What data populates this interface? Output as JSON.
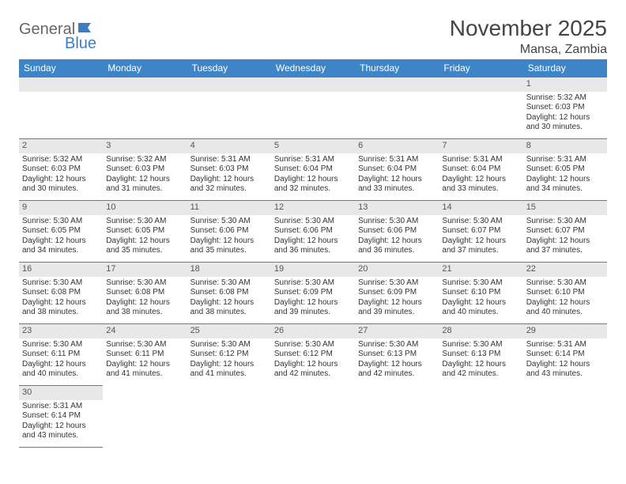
{
  "logo": {
    "part1": "General",
    "part2": "Blue"
  },
  "title": "November 2025",
  "subtitle": "Mansa, Zambia",
  "colors": {
    "header_bg": "#3d85c6",
    "header_text": "#ffffff",
    "border": "#3d85c6",
    "daynum_bg": "#e8e8e8",
    "logo_gray": "#666666",
    "logo_blue": "#3b7fbf"
  },
  "weekdays": [
    "Sunday",
    "Monday",
    "Tuesday",
    "Wednesday",
    "Thursday",
    "Friday",
    "Saturday"
  ],
  "weeks": [
    [
      null,
      null,
      null,
      null,
      null,
      null,
      {
        "n": "1",
        "sr": "Sunrise: 5:32 AM",
        "ss": "Sunset: 6:03 PM",
        "d1": "Daylight: 12 hours",
        "d2": "and 30 minutes."
      }
    ],
    [
      {
        "n": "2",
        "sr": "Sunrise: 5:32 AM",
        "ss": "Sunset: 6:03 PM",
        "d1": "Daylight: 12 hours",
        "d2": "and 30 minutes."
      },
      {
        "n": "3",
        "sr": "Sunrise: 5:32 AM",
        "ss": "Sunset: 6:03 PM",
        "d1": "Daylight: 12 hours",
        "d2": "and 31 minutes."
      },
      {
        "n": "4",
        "sr": "Sunrise: 5:31 AM",
        "ss": "Sunset: 6:03 PM",
        "d1": "Daylight: 12 hours",
        "d2": "and 32 minutes."
      },
      {
        "n": "5",
        "sr": "Sunrise: 5:31 AM",
        "ss": "Sunset: 6:04 PM",
        "d1": "Daylight: 12 hours",
        "d2": "and 32 minutes."
      },
      {
        "n": "6",
        "sr": "Sunrise: 5:31 AM",
        "ss": "Sunset: 6:04 PM",
        "d1": "Daylight: 12 hours",
        "d2": "and 33 minutes."
      },
      {
        "n": "7",
        "sr": "Sunrise: 5:31 AM",
        "ss": "Sunset: 6:04 PM",
        "d1": "Daylight: 12 hours",
        "d2": "and 33 minutes."
      },
      {
        "n": "8",
        "sr": "Sunrise: 5:31 AM",
        "ss": "Sunset: 6:05 PM",
        "d1": "Daylight: 12 hours",
        "d2": "and 34 minutes."
      }
    ],
    [
      {
        "n": "9",
        "sr": "Sunrise: 5:30 AM",
        "ss": "Sunset: 6:05 PM",
        "d1": "Daylight: 12 hours",
        "d2": "and 34 minutes."
      },
      {
        "n": "10",
        "sr": "Sunrise: 5:30 AM",
        "ss": "Sunset: 6:05 PM",
        "d1": "Daylight: 12 hours",
        "d2": "and 35 minutes."
      },
      {
        "n": "11",
        "sr": "Sunrise: 5:30 AM",
        "ss": "Sunset: 6:06 PM",
        "d1": "Daylight: 12 hours",
        "d2": "and 35 minutes."
      },
      {
        "n": "12",
        "sr": "Sunrise: 5:30 AM",
        "ss": "Sunset: 6:06 PM",
        "d1": "Daylight: 12 hours",
        "d2": "and 36 minutes."
      },
      {
        "n": "13",
        "sr": "Sunrise: 5:30 AM",
        "ss": "Sunset: 6:06 PM",
        "d1": "Daylight: 12 hours",
        "d2": "and 36 minutes."
      },
      {
        "n": "14",
        "sr": "Sunrise: 5:30 AM",
        "ss": "Sunset: 6:07 PM",
        "d1": "Daylight: 12 hours",
        "d2": "and 37 minutes."
      },
      {
        "n": "15",
        "sr": "Sunrise: 5:30 AM",
        "ss": "Sunset: 6:07 PM",
        "d1": "Daylight: 12 hours",
        "d2": "and 37 minutes."
      }
    ],
    [
      {
        "n": "16",
        "sr": "Sunrise: 5:30 AM",
        "ss": "Sunset: 6:08 PM",
        "d1": "Daylight: 12 hours",
        "d2": "and 38 minutes."
      },
      {
        "n": "17",
        "sr": "Sunrise: 5:30 AM",
        "ss": "Sunset: 6:08 PM",
        "d1": "Daylight: 12 hours",
        "d2": "and 38 minutes."
      },
      {
        "n": "18",
        "sr": "Sunrise: 5:30 AM",
        "ss": "Sunset: 6:08 PM",
        "d1": "Daylight: 12 hours",
        "d2": "and 38 minutes."
      },
      {
        "n": "19",
        "sr": "Sunrise: 5:30 AM",
        "ss": "Sunset: 6:09 PM",
        "d1": "Daylight: 12 hours",
        "d2": "and 39 minutes."
      },
      {
        "n": "20",
        "sr": "Sunrise: 5:30 AM",
        "ss": "Sunset: 6:09 PM",
        "d1": "Daylight: 12 hours",
        "d2": "and 39 minutes."
      },
      {
        "n": "21",
        "sr": "Sunrise: 5:30 AM",
        "ss": "Sunset: 6:10 PM",
        "d1": "Daylight: 12 hours",
        "d2": "and 40 minutes."
      },
      {
        "n": "22",
        "sr": "Sunrise: 5:30 AM",
        "ss": "Sunset: 6:10 PM",
        "d1": "Daylight: 12 hours",
        "d2": "and 40 minutes."
      }
    ],
    [
      {
        "n": "23",
        "sr": "Sunrise: 5:30 AM",
        "ss": "Sunset: 6:11 PM",
        "d1": "Daylight: 12 hours",
        "d2": "and 40 minutes."
      },
      {
        "n": "24",
        "sr": "Sunrise: 5:30 AM",
        "ss": "Sunset: 6:11 PM",
        "d1": "Daylight: 12 hours",
        "d2": "and 41 minutes."
      },
      {
        "n": "25",
        "sr": "Sunrise: 5:30 AM",
        "ss": "Sunset: 6:12 PM",
        "d1": "Daylight: 12 hours",
        "d2": "and 41 minutes."
      },
      {
        "n": "26",
        "sr": "Sunrise: 5:30 AM",
        "ss": "Sunset: 6:12 PM",
        "d1": "Daylight: 12 hours",
        "d2": "and 42 minutes."
      },
      {
        "n": "27",
        "sr": "Sunrise: 5:30 AM",
        "ss": "Sunset: 6:13 PM",
        "d1": "Daylight: 12 hours",
        "d2": "and 42 minutes."
      },
      {
        "n": "28",
        "sr": "Sunrise: 5:30 AM",
        "ss": "Sunset: 6:13 PM",
        "d1": "Daylight: 12 hours",
        "d2": "and 42 minutes."
      },
      {
        "n": "29",
        "sr": "Sunrise: 5:31 AM",
        "ss": "Sunset: 6:14 PM",
        "d1": "Daylight: 12 hours",
        "d2": "and 43 minutes."
      }
    ],
    [
      {
        "n": "30",
        "sr": "Sunrise: 5:31 AM",
        "ss": "Sunset: 6:14 PM",
        "d1": "Daylight: 12 hours",
        "d2": "and 43 minutes."
      },
      null,
      null,
      null,
      null,
      null,
      null
    ]
  ]
}
